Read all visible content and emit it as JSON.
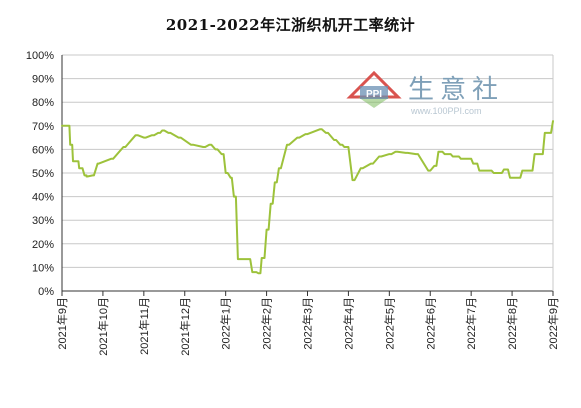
{
  "chart_data": {
    "type": "line",
    "title": "2021-2022年江浙织机开工率统计",
    "y_ticks": [
      "0%",
      "10%",
      "20%",
      "30%",
      "40%",
      "50%",
      "60%",
      "70%",
      "80%",
      "90%",
      "100%"
    ],
    "ylim": [
      0,
      100
    ],
    "x_ticks": [
      "2021年9月",
      "2021年10月",
      "2021年11月",
      "2021年12月",
      "2022年1月",
      "2022年2月",
      "2022年3月",
      "2022年4月",
      "2022年5月",
      "2022年6月",
      "2022年7月",
      "2022年8月",
      "2022年9月"
    ],
    "grid": true,
    "series": [
      {
        "color": "#9dc23b",
        "x": [
          0,
          0.18,
          0.2,
          0.25,
          0.27,
          0.4,
          0.42,
          0.5,
          0.55,
          0.6,
          0.6,
          0.62,
          0.75,
          0.78,
          0.87,
          0.9,
          1.2,
          1.25,
          1.5,
          1.55,
          1.8,
          1.85,
          2.0,
          2.05,
          2.2,
          2.25,
          2.35,
          2.4,
          2.45,
          2.5,
          2.6,
          2.65,
          2.85,
          2.9,
          3.15,
          3.2,
          3.45,
          3.5,
          3.6,
          3.65,
          3.75,
          3.8,
          3.9,
          3.95,
          4.0,
          4.05,
          4.12,
          4.15,
          4.2,
          4.25,
          4.3,
          4.6,
          4.65,
          4.75,
          4.8,
          4.85,
          4.88,
          4.95,
          5.0,
          5.05,
          5.1,
          5.15,
          5.2,
          5.25,
          5.3,
          5.35,
          5.5,
          5.55,
          5.75,
          5.8,
          5.95,
          6.0,
          6.3,
          6.35,
          6.45,
          6.5,
          6.65,
          6.7,
          6.8,
          6.85,
          6.9,
          7.0,
          7.1,
          7.15,
          7.3,
          7.35,
          7.55,
          7.6,
          7.75,
          7.8,
          8.0,
          8.05,
          8.15,
          8.2,
          8.4,
          8.45,
          8.65,
          8.7,
          8.95,
          9.0,
          9.1,
          9.15,
          9.2,
          9.3,
          9.35,
          9.5,
          9.55,
          9.7,
          9.75,
          10.0,
          10.05,
          10.15,
          10.2,
          10.5,
          10.55,
          10.75,
          10.8,
          10.9,
          10.95,
          11.2,
          11.25,
          11.5,
          11.55,
          11.75,
          11.8,
          11.95,
          12.0
        ],
        "values": [
          70,
          70,
          62,
          62,
          55,
          55,
          52,
          52,
          49,
          49,
          48.5,
          48.5,
          49,
          49,
          54,
          54,
          56,
          56,
          61,
          61,
          66,
          66,
          65,
          65,
          66,
          66,
          67,
          67,
          68,
          68,
          67,
          67,
          65,
          65,
          62,
          62,
          61,
          61,
          62,
          62,
          60,
          60,
          58,
          58,
          50,
          50,
          48,
          48,
          40,
          40,
          13.5,
          13.5,
          8,
          8,
          7.5,
          7.5,
          14,
          14,
          26,
          26,
          37,
          37,
          46,
          46,
          52,
          52,
          62,
          62,
          65,
          65,
          66.5,
          66.5,
          68.5,
          68.5,
          67,
          67,
          64,
          64,
          62,
          62,
          61,
          61,
          47,
          47,
          52,
          52,
          54,
          54,
          57,
          57,
          58,
          58,
          59,
          59,
          58.5,
          58.5,
          58,
          58,
          51,
          51,
          53,
          53,
          59,
          59,
          58,
          58,
          57,
          57,
          56,
          56,
          54,
          54,
          51,
          51,
          50,
          50,
          51.5,
          51.5,
          48,
          48,
          51,
          51,
          58,
          58,
          67,
          67,
          72
        ]
      }
    ]
  },
  "watermark": {
    "logo_text": "PPI",
    "name": "生意社",
    "url": "www.100PPI.com"
  },
  "colors": {
    "line": "#9dc23b",
    "grid": "#c8c8c8",
    "axis": "#333333",
    "logo_red": "#d9534f",
    "logo_green": "#7dbb5e",
    "logo_blue": "#6a8fb3"
  }
}
